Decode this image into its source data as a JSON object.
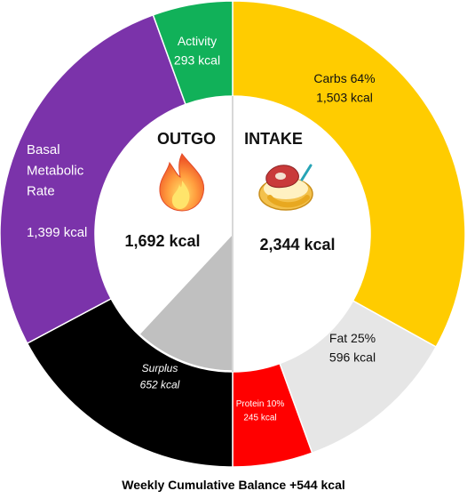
{
  "chart_data": {
    "type": "pie",
    "center": {
      "outgo": {
        "title": "OUTGO",
        "total": "1,692 kcal"
      },
      "intake": {
        "title": "INTAKE",
        "total": "2,344 kcal"
      }
    },
    "segments": [
      {
        "id": "carbs",
        "label_lines": [
          "Carbs 64%",
          "1,503 kcal"
        ],
        "value": 1503,
        "percent": 64,
        "color": "#FFCC00",
        "ring": "outer",
        "side": "intake"
      },
      {
        "id": "fat",
        "label_lines": [
          "Fat 25%",
          "596 kcal"
        ],
        "value": 596,
        "percent": 25,
        "color": "#E6E6E6",
        "ring": "outer",
        "side": "intake"
      },
      {
        "id": "protein",
        "label_lines": [
          "Protein 10%",
          "245 kcal"
        ],
        "value": 245,
        "percent": 10,
        "color": "#FF0000",
        "ring": "outer",
        "side": "intake"
      },
      {
        "id": "surplus",
        "label_lines": [
          "Surplus",
          "652 kcal"
        ],
        "value": 652,
        "color": "#000000",
        "ring": "outer",
        "side": "outgo"
      },
      {
        "id": "bmr",
        "label_lines": [
          "Basal",
          "Metabolic",
          "Rate",
          "",
          "1,399 kcal"
        ],
        "value": 1399,
        "color": "#7B33AA",
        "ring": "outer",
        "side": "outgo"
      },
      {
        "id": "activity",
        "label_lines": [
          "Activity",
          "293 kcal"
        ],
        "value": 293,
        "color": "#11B159",
        "ring": "outer",
        "side": "outgo"
      },
      {
        "id": "surplus-inner",
        "label_lines": [],
        "value": 652,
        "color": "#C0C0C0",
        "ring": "inner",
        "side": "outgo"
      }
    ],
    "footer": "Weekly Cumulative Balance +544 kcal"
  },
  "icons": {
    "outgo": "flame-icon",
    "intake": "food-plate-icon"
  }
}
